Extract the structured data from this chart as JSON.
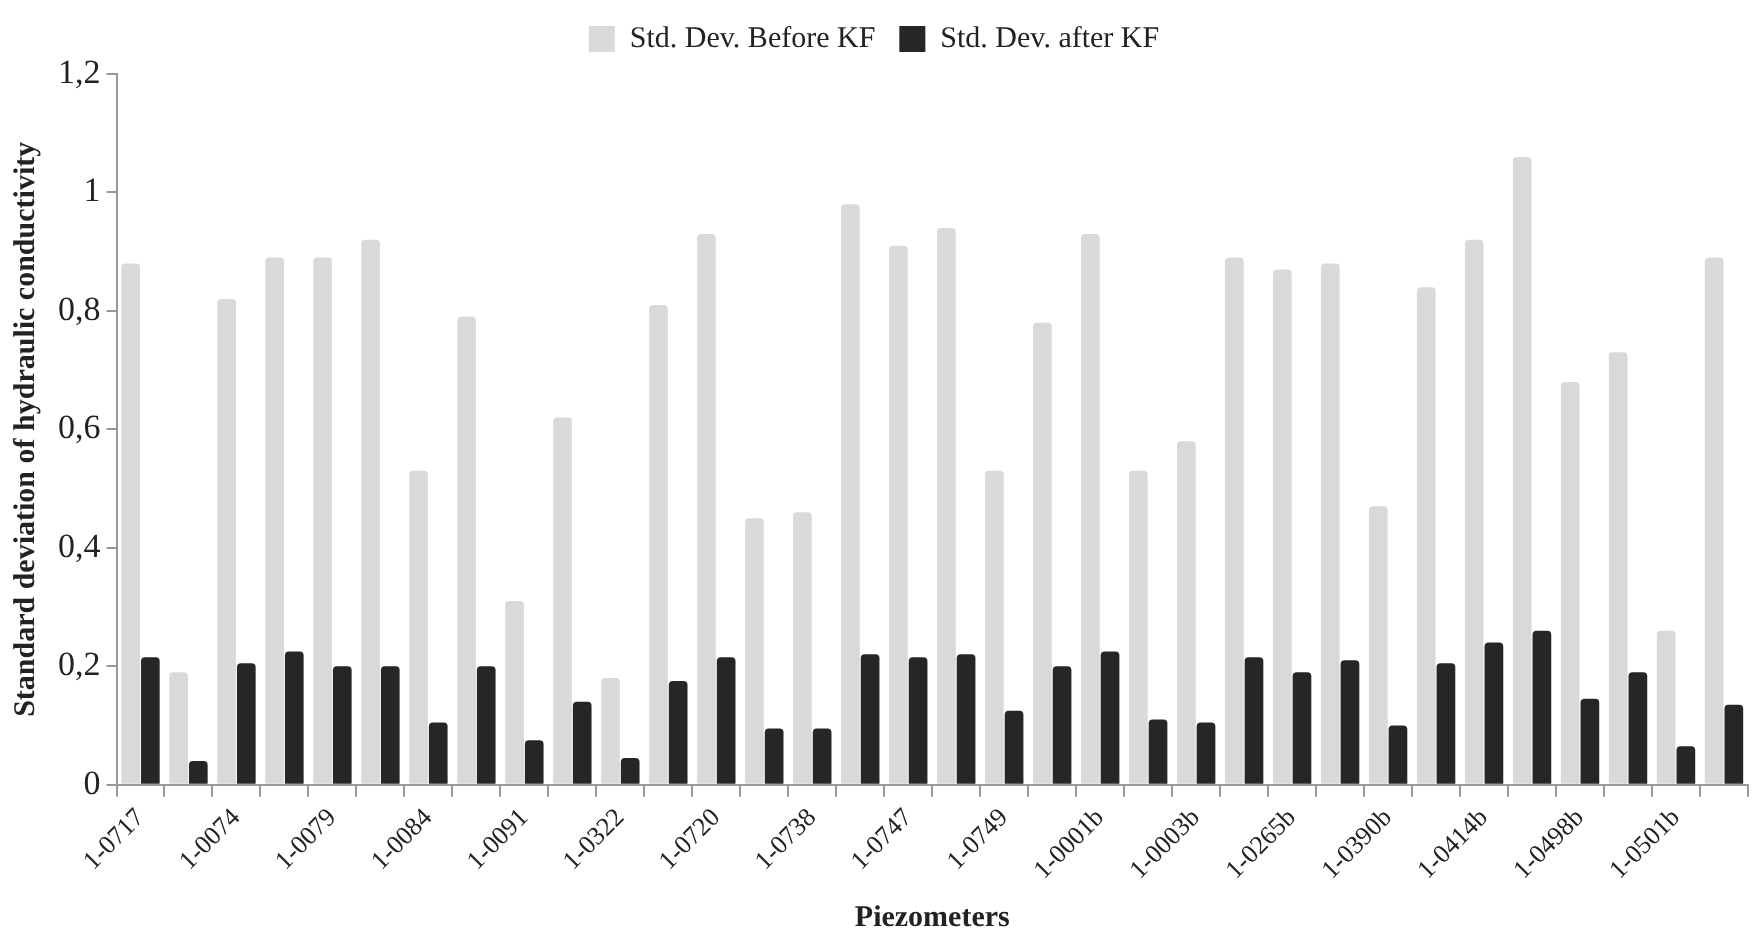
{
  "chart_data": {
    "type": "bar",
    "xlabel": "Piezometers",
    "ylabel": "Standard deviation of hydraulic conductivity",
    "categories": [
      "1-0717",
      null,
      "1-0074",
      null,
      "1-0079",
      null,
      "1-0084",
      null,
      "1-0091",
      null,
      "1-0322",
      null,
      "1-0720",
      null,
      "1-0738",
      null,
      "1-0747",
      null,
      "1-0749",
      null,
      "1-0001b",
      null,
      "1-0003b",
      null,
      "1-0265b",
      null,
      "1-0390b",
      null,
      "1-0414b",
      null,
      "1-0498b",
      null,
      "1-0501b",
      null
    ],
    "series": [
      {
        "name": "Std. Dev. Before KF",
        "color": "#d9d9d9",
        "values": [
          0.88,
          0.19,
          0.82,
          0.89,
          0.89,
          0.92,
          0.53,
          0.79,
          0.31,
          0.62,
          0.18,
          0.81,
          0.93,
          0.45,
          0.46,
          0.98,
          0.91,
          0.94,
          0.53,
          0.78,
          0.93,
          0.53,
          0.58,
          0.89,
          0.87,
          0.88,
          0.47,
          0.84,
          0.92,
          1.06,
          0.68,
          0.73,
          0.26,
          0.89
        ]
      },
      {
        "name": "Std. Dev. after KF",
        "color": "#262626",
        "values": [
          0.215,
          0.04,
          0.205,
          0.225,
          0.2,
          0.2,
          0.105,
          0.2,
          0.075,
          0.14,
          0.045,
          0.175,
          0.215,
          0.095,
          0.095,
          0.22,
          0.215,
          0.22,
          0.125,
          0.2,
          0.225,
          0.11,
          0.105,
          0.215,
          0.19,
          0.21,
          0.1,
          0.205,
          0.24,
          0.26,
          0.145,
          0.19,
          0.065,
          0.135
        ]
      }
    ],
    "ylim": [
      0,
      1.2
    ],
    "yticks": [
      0,
      {
        "value": 0.2,
        "label": "0,2"
      },
      {
        "value": 0.4,
        "label": "0,4"
      },
      {
        "value": 0.6,
        "label": "0,6"
      },
      {
        "value": 0.8,
        "label": "0,8"
      },
      1,
      {
        "value": 1.2,
        "label": "1,2"
      }
    ],
    "grid": false,
    "legend": "top"
  }
}
